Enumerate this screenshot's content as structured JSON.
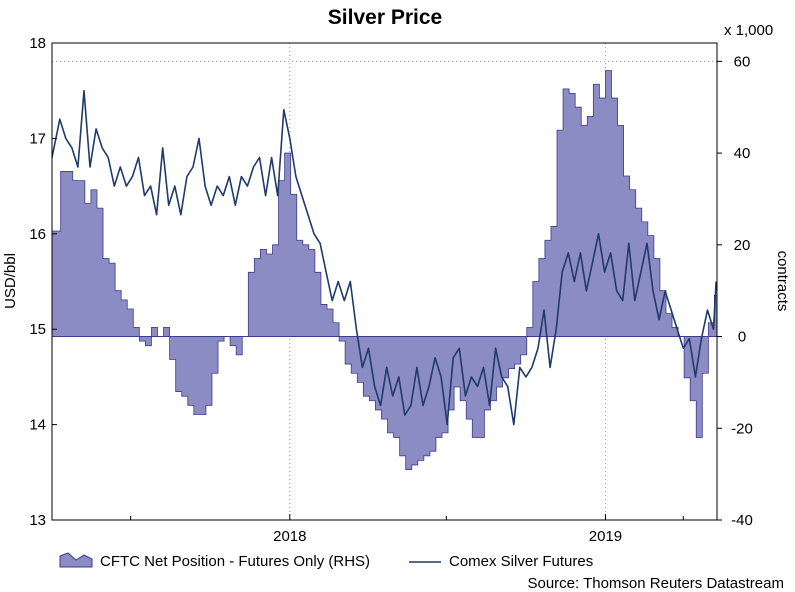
{
  "chart_data": {
    "type": "area",
    "title": "Silver Price",
    "ylabel_left": "USD/bbl",
    "ylabel_right": "contracts",
    "right_axis_multiplier": "x 1,000",
    "source": "Source: Thomson Reuters Datastream",
    "x_range": [
      "2017-04-01",
      "2019-05-10"
    ],
    "x_ticks": [
      {
        "date": "2018-01-01",
        "label": "2018"
      },
      {
        "date": "2019-01-01",
        "label": "2019"
      }
    ],
    "x_minor_ticks": [
      "2017-07-01",
      "2018-07-01",
      "2019-04-01"
    ],
    "left_axis": {
      "min": 13,
      "max": 18,
      "ticks": [
        13,
        14,
        15,
        16,
        17,
        18
      ]
    },
    "right_axis": {
      "min": -40,
      "max": 64,
      "ticks": [
        -40,
        -20,
        0,
        20,
        40,
        60
      ]
    },
    "grid": "dotted vertical at year boundaries",
    "legend_position": "bottom-left",
    "series": [
      {
        "name": "CFTC Net Position - Futures Only (RHS)",
        "axis": "right",
        "style": "step-area",
        "color": "#8c8cc4",
        "edge_color": "#3c3c8c",
        "points": [
          [
            "2017-04-01",
            23
          ],
          [
            "2017-04-11",
            36
          ],
          [
            "2017-04-25",
            34
          ],
          [
            "2017-05-09",
            29
          ],
          [
            "2017-05-16",
            32
          ],
          [
            "2017-05-23",
            28
          ],
          [
            "2017-05-30",
            17
          ],
          [
            "2017-06-06",
            16
          ],
          [
            "2017-06-13",
            10
          ],
          [
            "2017-06-20",
            8
          ],
          [
            "2017-06-27",
            6
          ],
          [
            "2017-07-04",
            2
          ],
          [
            "2017-07-11",
            -1
          ],
          [
            "2017-07-18",
            -2
          ],
          [
            "2017-07-25",
            2
          ],
          [
            "2017-08-01",
            0
          ],
          [
            "2017-08-08",
            2
          ],
          [
            "2017-08-15",
            -5
          ],
          [
            "2017-08-22",
            -12
          ],
          [
            "2017-08-29",
            -13
          ],
          [
            "2017-09-05",
            -15
          ],
          [
            "2017-09-12",
            -17
          ],
          [
            "2017-09-19",
            -17
          ],
          [
            "2017-09-26",
            -15
          ],
          [
            "2017-10-03",
            -8
          ],
          [
            "2017-10-10",
            -1
          ],
          [
            "2017-10-17",
            0
          ],
          [
            "2017-10-24",
            -2
          ],
          [
            "2017-10-31",
            -4
          ],
          [
            "2017-11-07",
            0
          ],
          [
            "2017-11-14",
            14
          ],
          [
            "2017-11-21",
            17
          ],
          [
            "2017-11-28",
            19
          ],
          [
            "2017-12-05",
            18
          ],
          [
            "2017-12-12",
            20
          ],
          [
            "2017-12-19",
            34
          ],
          [
            "2017-12-26",
            40
          ],
          [
            "2018-01-02",
            31
          ],
          [
            "2018-01-09",
            21
          ],
          [
            "2018-01-16",
            20
          ],
          [
            "2018-01-23",
            19
          ],
          [
            "2018-01-30",
            14
          ],
          [
            "2018-02-06",
            7
          ],
          [
            "2018-02-13",
            6
          ],
          [
            "2018-02-20",
            3
          ],
          [
            "2018-02-27",
            -1
          ],
          [
            "2018-03-06",
            -6
          ],
          [
            "2018-03-13",
            -8
          ],
          [
            "2018-03-20",
            -10
          ],
          [
            "2018-03-27",
            -13
          ],
          [
            "2018-04-03",
            -14
          ],
          [
            "2018-04-10",
            -16
          ],
          [
            "2018-04-17",
            -18
          ],
          [
            "2018-04-24",
            -21
          ],
          [
            "2018-05-01",
            -22
          ],
          [
            "2018-05-08",
            -26
          ],
          [
            "2018-05-15",
            -29
          ],
          [
            "2018-05-22",
            -28
          ],
          [
            "2018-05-29",
            -27
          ],
          [
            "2018-06-05",
            -26
          ],
          [
            "2018-06-12",
            -25
          ],
          [
            "2018-06-19",
            -22
          ],
          [
            "2018-06-26",
            -21
          ],
          [
            "2018-07-03",
            -16
          ],
          [
            "2018-07-10",
            -11
          ],
          [
            "2018-07-17",
            -14
          ],
          [
            "2018-07-24",
            -18
          ],
          [
            "2018-07-31",
            -22
          ],
          [
            "2018-08-07",
            -22
          ],
          [
            "2018-08-14",
            -16
          ],
          [
            "2018-08-21",
            -14
          ],
          [
            "2018-08-28",
            -11
          ],
          [
            "2018-09-04",
            -9
          ],
          [
            "2018-09-11",
            -7
          ],
          [
            "2018-09-18",
            -6
          ],
          [
            "2018-09-25",
            -4
          ],
          [
            "2018-10-02",
            2
          ],
          [
            "2018-10-09",
            12
          ],
          [
            "2018-10-16",
            17
          ],
          [
            "2018-10-23",
            21
          ],
          [
            "2018-10-30",
            24
          ],
          [
            "2018-11-06",
            45
          ],
          [
            "2018-11-13",
            54
          ],
          [
            "2018-11-20",
            53
          ],
          [
            "2018-11-27",
            50
          ],
          [
            "2018-12-04",
            46
          ],
          [
            "2018-12-11",
            48
          ],
          [
            "2018-12-18",
            55
          ],
          [
            "2018-12-25",
            52
          ],
          [
            "2019-01-01",
            58
          ],
          [
            "2019-01-08",
            52
          ],
          [
            "2019-01-15",
            46
          ],
          [
            "2019-01-22",
            35
          ],
          [
            "2019-01-29",
            32
          ],
          [
            "2019-02-05",
            28
          ],
          [
            "2019-02-12",
            25
          ],
          [
            "2019-02-19",
            22
          ],
          [
            "2019-02-26",
            17
          ],
          [
            "2019-03-05",
            10
          ],
          [
            "2019-03-12",
            5
          ],
          [
            "2019-03-19",
            2
          ],
          [
            "2019-03-26",
            0
          ],
          [
            "2019-04-02",
            -9
          ],
          [
            "2019-04-09",
            -14
          ],
          [
            "2019-04-16",
            -22
          ],
          [
            "2019-04-23",
            -8
          ],
          [
            "2019-04-30",
            3
          ],
          [
            "2019-05-07",
            9
          ]
        ]
      },
      {
        "name": "Comex Silver Futures",
        "axis": "left",
        "style": "line",
        "color": "#1f3a6b",
        "points": [
          [
            "2017-04-01",
            16.8
          ],
          [
            "2017-04-10",
            17.2
          ],
          [
            "2017-04-17",
            17.0
          ],
          [
            "2017-04-24",
            16.9
          ],
          [
            "2017-05-01",
            16.7
          ],
          [
            "2017-05-08",
            17.5
          ],
          [
            "2017-05-15",
            16.7
          ],
          [
            "2017-05-22",
            17.1
          ],
          [
            "2017-05-29",
            16.9
          ],
          [
            "2017-06-05",
            16.8
          ],
          [
            "2017-06-12",
            16.5
          ],
          [
            "2017-06-19",
            16.7
          ],
          [
            "2017-06-26",
            16.5
          ],
          [
            "2017-07-03",
            16.6
          ],
          [
            "2017-07-10",
            16.8
          ],
          [
            "2017-07-17",
            16.4
          ],
          [
            "2017-07-24",
            16.5
          ],
          [
            "2017-07-31",
            16.2
          ],
          [
            "2017-08-07",
            16.9
          ],
          [
            "2017-08-14",
            16.3
          ],
          [
            "2017-08-21",
            16.5
          ],
          [
            "2017-08-28",
            16.2
          ],
          [
            "2017-09-04",
            16.6
          ],
          [
            "2017-09-11",
            16.7
          ],
          [
            "2017-09-18",
            17.0
          ],
          [
            "2017-09-25",
            16.5
          ],
          [
            "2017-10-02",
            16.3
          ],
          [
            "2017-10-09",
            16.5
          ],
          [
            "2017-10-16",
            16.4
          ],
          [
            "2017-10-23",
            16.6
          ],
          [
            "2017-10-30",
            16.3
          ],
          [
            "2017-11-06",
            16.6
          ],
          [
            "2017-11-13",
            16.5
          ],
          [
            "2017-11-20",
            16.7
          ],
          [
            "2017-11-27",
            16.8
          ],
          [
            "2017-12-04",
            16.4
          ],
          [
            "2017-12-11",
            16.8
          ],
          [
            "2017-12-18",
            16.4
          ],
          [
            "2017-12-25",
            17.3
          ],
          [
            "2018-01-01",
            17.0
          ],
          [
            "2018-01-08",
            16.6
          ],
          [
            "2018-01-15",
            16.4
          ],
          [
            "2018-01-22",
            16.2
          ],
          [
            "2018-01-29",
            16.0
          ],
          [
            "2018-02-05",
            15.9
          ],
          [
            "2018-02-12",
            15.6
          ],
          [
            "2018-02-19",
            15.3
          ],
          [
            "2018-02-26",
            15.5
          ],
          [
            "2018-03-05",
            15.3
          ],
          [
            "2018-03-12",
            15.5
          ],
          [
            "2018-03-19",
            15.0
          ],
          [
            "2018-03-26",
            14.6
          ],
          [
            "2018-04-02",
            14.8
          ],
          [
            "2018-04-09",
            14.4
          ],
          [
            "2018-04-16",
            14.2
          ],
          [
            "2018-04-23",
            14.6
          ],
          [
            "2018-04-30",
            14.3
          ],
          [
            "2018-05-07",
            14.5
          ],
          [
            "2018-05-14",
            14.1
          ],
          [
            "2018-05-21",
            14.2
          ],
          [
            "2018-05-28",
            14.6
          ],
          [
            "2018-06-04",
            14.2
          ],
          [
            "2018-06-11",
            14.4
          ],
          [
            "2018-06-18",
            14.7
          ],
          [
            "2018-06-25",
            14.5
          ],
          [
            "2018-07-02",
            14.0
          ],
          [
            "2018-07-09",
            14.7
          ],
          [
            "2018-07-16",
            14.8
          ],
          [
            "2018-07-23",
            14.3
          ],
          [
            "2018-07-30",
            14.5
          ],
          [
            "2018-08-06",
            14.4
          ],
          [
            "2018-08-13",
            14.6
          ],
          [
            "2018-08-20",
            14.2
          ],
          [
            "2018-08-27",
            14.8
          ],
          [
            "2018-09-03",
            14.5
          ],
          [
            "2018-09-10",
            14.4
          ],
          [
            "2018-09-17",
            14.0
          ],
          [
            "2018-09-24",
            14.6
          ],
          [
            "2018-10-01",
            14.5
          ],
          [
            "2018-10-08",
            14.6
          ],
          [
            "2018-10-15",
            14.8
          ],
          [
            "2018-10-22",
            15.2
          ],
          [
            "2018-10-29",
            14.6
          ],
          [
            "2018-11-05",
            15.0
          ],
          [
            "2018-11-12",
            15.6
          ],
          [
            "2018-11-19",
            15.8
          ],
          [
            "2018-11-26",
            15.5
          ],
          [
            "2018-12-03",
            15.8
          ],
          [
            "2018-12-10",
            15.4
          ],
          [
            "2018-12-17",
            15.7
          ],
          [
            "2018-12-24",
            16.0
          ],
          [
            "2018-12-31",
            15.6
          ],
          [
            "2019-01-07",
            15.8
          ],
          [
            "2019-01-14",
            15.4
          ],
          [
            "2019-01-21",
            15.3
          ],
          [
            "2019-01-28",
            15.9
          ],
          [
            "2019-02-04",
            15.3
          ],
          [
            "2019-02-11",
            15.6
          ],
          [
            "2019-02-18",
            15.9
          ],
          [
            "2019-02-25",
            15.4
          ],
          [
            "2019-03-04",
            15.1
          ],
          [
            "2019-03-11",
            15.4
          ],
          [
            "2019-03-18",
            15.2
          ],
          [
            "2019-03-25",
            15.0
          ],
          [
            "2019-04-01",
            14.8
          ],
          [
            "2019-04-08",
            14.9
          ],
          [
            "2019-04-15",
            14.5
          ],
          [
            "2019-04-22",
            14.9
          ],
          [
            "2019-04-29",
            15.2
          ],
          [
            "2019-05-06",
            15.0
          ],
          [
            "2019-05-09",
            15.5
          ]
        ]
      }
    ]
  }
}
